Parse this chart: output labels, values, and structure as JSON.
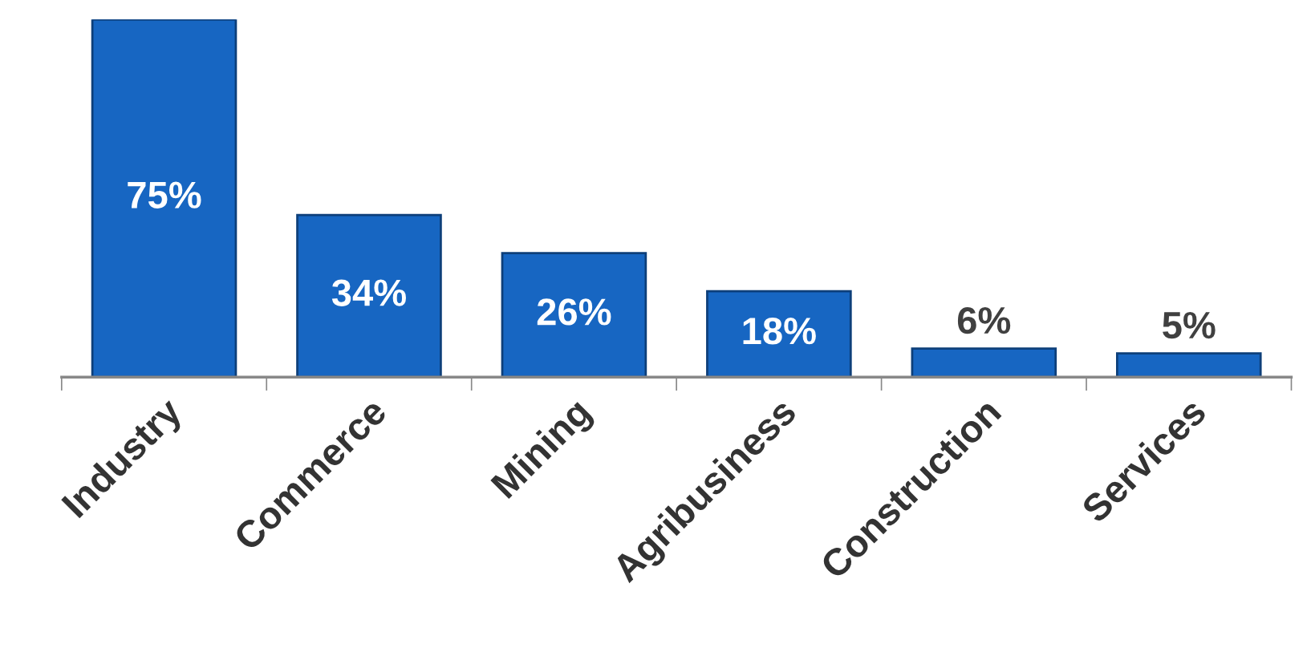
{
  "chart_data": {
    "type": "bar",
    "categories": [
      "Industry",
      "Commerce",
      "Mining",
      "Agribusiness",
      "Construction",
      "Services"
    ],
    "values": [
      75,
      34,
      26,
      18,
      6,
      5
    ],
    "value_labels": [
      "75%",
      "34%",
      "26%",
      "18%",
      "6%",
      "5%"
    ],
    "color": "#1766c2",
    "grid": false,
    "legend": false
  }
}
